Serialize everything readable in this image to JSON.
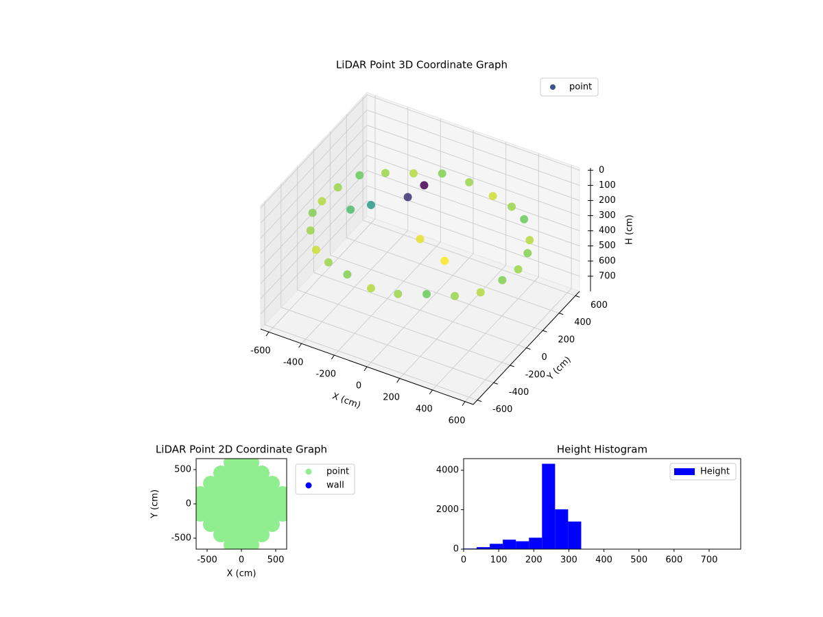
{
  "chart_data": [
    {
      "type": "scatter3d",
      "title": "LiDAR Point 3D Coordinate Graph",
      "x_label": "X (cm)",
      "y_label": "Y (cm)",
      "z_label": "H (cm)",
      "xlim": [
        -650,
        650
      ],
      "ylim": [
        -650,
        650
      ],
      "zlim": [
        -15,
        800
      ],
      "z_inverted": true,
      "xticks": [
        -600,
        -400,
        -200,
        0,
        200,
        400,
        600
      ],
      "yticks": [
        -600,
        -400,
        -200,
        0,
        200,
        400,
        600
      ],
      "zticks": [
        0,
        100,
        200,
        300,
        400,
        500,
        600,
        700
      ],
      "colormap": "viridis",
      "grid": true,
      "legend": "upper right",
      "series": [
        {
          "name": "point",
          "color": "#3b528b",
          "x": [
            600,
            580,
            520,
            424,
            300,
            155,
            0,
            -155,
            -300,
            -424,
            -520,
            -580,
            -600,
            -580,
            -520,
            -424,
            -300,
            -155,
            0,
            155,
            300,
            424,
            520,
            580,
            -50,
            -100,
            -300,
            -400,
            0,
            200
          ],
          "y": [
            0,
            155,
            300,
            424,
            520,
            580,
            600,
            580,
            520,
            424,
            300,
            155,
            0,
            -155,
            -300,
            -424,
            -520,
            -580,
            -600,
            -580,
            -520,
            -424,
            -300,
            -155,
            150,
            50,
            0,
            -50,
            0,
            -100
          ],
          "z": [
            300,
            290,
            310,
            280,
            300,
            320,
            300,
            290,
            310,
            300,
            280,
            300,
            310,
            290,
            300,
            320,
            300,
            290,
            310,
            300,
            280,
            300,
            310,
            290,
            80,
            120,
            220,
            260,
            330,
            340
          ]
        }
      ]
    },
    {
      "type": "scatter",
      "title": "LiDAR Point 2D Coordinate Graph",
      "x_label": "X (cm)",
      "y_label": "Y (cm)",
      "xlim": [
        -660,
        660
      ],
      "ylim": [
        -660,
        660
      ],
      "xticks": [
        -500,
        0,
        500
      ],
      "yticks": [
        -500,
        0,
        500
      ],
      "legend": "outside upper left",
      "series": [
        {
          "name": "point",
          "color": "#90ee90",
          "x": [
            -150,
            0,
            150,
            -300,
            -150,
            0,
            150,
            300,
            -450,
            -300,
            -150,
            0,
            150,
            300,
            450,
            -600,
            -450,
            -300,
            -150,
            0,
            150,
            300,
            450,
            600,
            -600,
            -450,
            -300,
            -150,
            0,
            150,
            300,
            450,
            600,
            -600,
            -450,
            -300,
            -150,
            0,
            150,
            300,
            450,
            600,
            -450,
            -300,
            -150,
            0,
            150,
            300,
            450,
            -300,
            -150,
            0,
            150,
            300,
            -150,
            0,
            150
          ],
          "y": [
            -600,
            -600,
            -600,
            -450,
            -450,
            -450,
            -450,
            -450,
            -300,
            -300,
            -300,
            -300,
            -300,
            -300,
            -300,
            -150,
            -150,
            -150,
            -150,
            -150,
            -150,
            -150,
            -150,
            -150,
            0,
            0,
            0,
            0,
            0,
            0,
            0,
            0,
            0,
            150,
            150,
            150,
            150,
            150,
            150,
            150,
            150,
            150,
            300,
            300,
            300,
            300,
            300,
            300,
            300,
            450,
            450,
            450,
            450,
            450,
            600,
            600,
            600
          ]
        },
        {
          "name": "wall",
          "color": "#0000ff",
          "x": [],
          "y": []
        }
      ]
    },
    {
      "type": "histogram",
      "title": "Height Histogram",
      "color": "#0000ff",
      "legend": "upper right",
      "series_name": "Height",
      "bins": [
        0,
        37.25,
        74.5,
        111.75,
        149,
        186.25,
        223.5,
        260.75,
        298,
        335.25,
        372.5,
        409.75,
        447,
        484.25,
        521.5,
        558.75,
        596,
        633.25,
        670.5,
        707.75,
        745
      ],
      "values": [
        30,
        100,
        270,
        480,
        400,
        580,
        4330,
        2020,
        1400,
        0,
        0,
        0,
        0,
        0,
        0,
        0,
        0,
        0,
        0,
        0
      ],
      "xlim": [
        0,
        790
      ],
      "ylim": [
        0,
        4590
      ],
      "xticks": [
        0,
        100,
        200,
        300,
        400,
        500,
        600,
        700
      ],
      "yticks": [
        0,
        2000,
        4000
      ]
    }
  ]
}
